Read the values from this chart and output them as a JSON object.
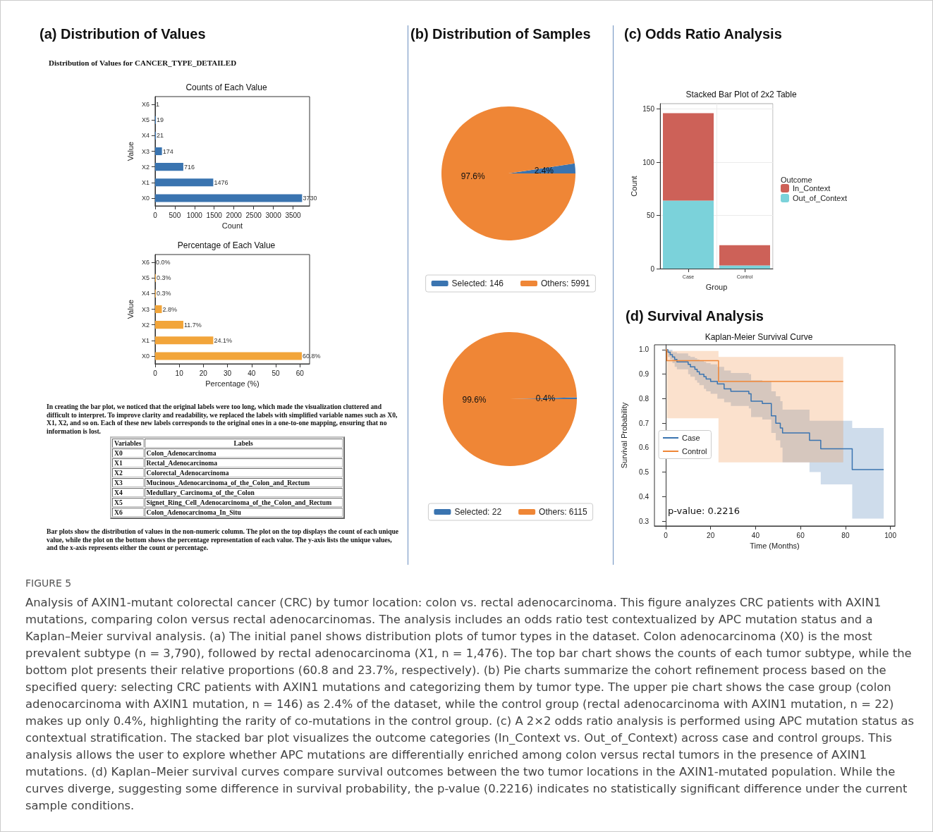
{
  "chart_data": [
    {
      "type": "bar",
      "orientation": "horizontal",
      "title": "Counts of Each Value",
      "xlabel": "Count",
      "ylabel": "Value",
      "categories": [
        "X6",
        "X5",
        "X4",
        "X3",
        "X2",
        "X1",
        "X0"
      ],
      "values": [
        1,
        19,
        21,
        174,
        716,
        1476,
        3730
      ],
      "color": "#3a74b0",
      "data_labels": true,
      "xlim": [
        0,
        3920
      ],
      "xticks": [
        0,
        500,
        1000,
        1500,
        2000,
        2500,
        3000,
        3500
      ],
      "annotations": [
        "(a) Distribution of Values",
        "Distribution of Values for CANCER_TYPE_DETAILED"
      ]
    },
    {
      "type": "bar",
      "orientation": "horizontal",
      "title": "Percentage of Each Value",
      "xlabel": "Percentage (%)",
      "ylabel": "Value",
      "categories": [
        "X6",
        "X5",
        "X4",
        "X3",
        "X2",
        "X1",
        "X0"
      ],
      "values": [
        0.0,
        0.3,
        0.3,
        2.8,
        11.7,
        24.1,
        60.8
      ],
      "value_labels": [
        "0.0%",
        "0.3%",
        "0.3%",
        "2.8%",
        "11.7%",
        "24.1%",
        "60.8%"
      ],
      "color": "#f2a53a",
      "xlim": [
        0,
        64
      ],
      "xticks": [
        0,
        10,
        20,
        30,
        40,
        50,
        60
      ]
    },
    {
      "type": "other",
      "annotations": [
        "In creating the bar plot, we noticed that the original labels were too long, which made the visualization cluttered and difficult to interpret. To improve clarity and readability, we replaced the labels with simplified variable names such as X0, X1, X2, and so on. Each of these new labels corresponds to the original ones in a one-to-one mapping, ensuring that no information is lost.",
        "Variables",
        "Labels",
        "X0",
        "Colon_Adenocarcinoma",
        "X1",
        "Rectal_Adenocarcinoma",
        "X2",
        "Colorectal_Adenocarcinoma",
        "X3",
        "Mucinous_Adenocarcinoma_of_the_Colon_and_Rectum",
        "X4",
        "Medullary_Carcinoma_of_the_Colon",
        "X5",
        "Signet_Ring_Cell_Adenocarcinoma_of_the_Colon_and_Rectum",
        "X6",
        "Colon_Adenocarcinoma_In_Situ",
        "Bar plots show the distribution of values in the non-numeric column. The plot on the top displays the count of each unique value, while the plot on the bottom shows the percentage representation of each value. The y-axis lists the unique values, and the x-axis represents either the count or percentage."
      ]
    },
    {
      "type": "pie",
      "categories": [
        "Selected: 146",
        "Others: 5991"
      ],
      "values": [
        2.4,
        97.6
      ],
      "value_labels": [
        "2.4%",
        "97.6%"
      ],
      "colors": [
        "#3a74b0",
        "#ef8636"
      ],
      "legend": "bottom",
      "annotations": [
        "(b) Distribution of Samples"
      ]
    },
    {
      "type": "pie",
      "categories": [
        "Selected: 22",
        "Others: 6115"
      ],
      "values": [
        0.4,
        99.6
      ],
      "value_labels": [
        "0.4%",
        "99.6%"
      ],
      "colors": [
        "#3a74b0",
        "#ef8636"
      ],
      "legend": "bottom"
    },
    {
      "type": "bar",
      "stacked": true,
      "title": "Stacked Bar Plot of 2x2 Table",
      "xlabel": "Group",
      "ylabel": "Count",
      "legend_title": "Outcome",
      "legend": "right",
      "grid": true,
      "categories": [
        "Case",
        "Control"
      ],
      "ylim": [
        0,
        155
      ],
      "yticks": [
        0,
        50,
        100,
        150
      ],
      "series": [
        {
          "name": "Out_of_Context",
          "color": "#7bd2da",
          "values": [
            64,
            3
          ]
        },
        {
          "name": "In_Context",
          "color": "#cd6158",
          "values": [
            82,
            19
          ]
        }
      ],
      "annotations": [
        "(c) Odds Ratio Analysis"
      ]
    },
    {
      "type": "step",
      "title": "Kaplan-Meier Survival Curve",
      "xlabel": "Time (Months)",
      "ylabel": "Survival Probability",
      "legend": "left",
      "marker": "none",
      "line_style": "solid",
      "xlim": [
        -5,
        102
      ],
      "xticks": [
        0,
        20,
        40,
        60,
        80,
        100
      ],
      "ylim": [
        0.28,
        1.02
      ],
      "yticks": [
        0.3,
        0.4,
        0.5,
        0.6,
        0.7,
        0.8,
        0.9,
        {
          "value": 1.0,
          "label": "1.0"
        }
      ],
      "series": [
        {
          "name": "Case",
          "color": "#3a74b0",
          "x": [
            0,
            1,
            2,
            3,
            4,
            5,
            10,
            11,
            13,
            14,
            15,
            17,
            18,
            20,
            23,
            26,
            29,
            37,
            38,
            43,
            47,
            49,
            51,
            52,
            64,
            69,
            83,
            97
          ],
          "values": [
            1.0,
            0.99,
            0.98,
            0.97,
            0.96,
            0.95,
            0.94,
            0.93,
            0.92,
            0.91,
            0.9,
            0.89,
            0.88,
            0.87,
            0.86,
            0.84,
            0.83,
            0.82,
            0.79,
            0.78,
            0.73,
            0.7,
            0.68,
            0.66,
            0.63,
            0.595,
            0.51,
            0.51
          ],
          "upper": [
            1.0,
            1.0,
            1.0,
            0.99,
            0.99,
            0.985,
            0.975,
            0.97,
            0.965,
            0.96,
            0.955,
            0.95,
            0.945,
            0.94,
            0.93,
            0.915,
            0.905,
            0.9,
            0.875,
            0.87,
            0.83,
            0.81,
            0.79,
            0.755,
            0.71,
            0.71,
            0.68,
            0.68
          ],
          "lower": [
            1.0,
            0.97,
            0.96,
            0.945,
            0.93,
            0.92,
            0.9,
            0.89,
            0.875,
            0.865,
            0.855,
            0.84,
            0.83,
            0.82,
            0.8,
            0.785,
            0.77,
            0.76,
            0.725,
            0.715,
            0.66,
            0.63,
            0.6,
            0.54,
            0.5,
            0.45,
            0.31,
            0.31
          ]
        },
        {
          "name": "Control",
          "color": "#ef8636",
          "x": [
            0,
            0.5,
            23.5,
            79
          ],
          "values": [
            1.0,
            0.955,
            0.87,
            0.87
          ],
          "upper": [
            1.0,
            0.995,
            0.97,
            0.97
          ],
          "lower": [
            1.0,
            0.72,
            0.54,
            0.54
          ]
        }
      ],
      "annotations": [
        "(d) Survival Analysis",
        "p-value: 0.2216"
      ]
    },
    {
      "type": "other",
      "annotations": [
        "FIGURE 5",
        "Analysis of AXIN1-mutant colorectal cancer (CRC) by tumor location: colon vs. rectal adenocarcinoma. This figure analyzes CRC patients with AXIN1 mutations, comparing colon versus rectal adenocarcinomas. The analysis includes an odds ratio test contextualized by APC mutation status and a Kaplan–Meier survival analysis. (a) The initial panel shows distribution plots of tumor types in the dataset. Colon adenocarcinoma (X0) is the most prevalent subtype (n = 3,790), followed by rectal adenocarcinoma (X1, n = 1,476). The top bar chart shows the counts of each tumor subtype, while the bottom plot presents their relative proportions (60.8 and 23.7%, respectively). (b) Pie charts summarize the cohort refinement process based on the specified query: selecting CRC patients with AXIN1 mutations and categorizing them by tumor type. The upper pie chart shows the case group (colon adenocarcinoma with AXIN1 mutation, n = 146) as 2.4% of the dataset, while the control group (rectal adenocarcinoma with AXIN1 mutation, n = 22) makes up only 0.4%, highlighting the rarity of co-mutations in the control group. (c) A 2×2 odds ratio analysis is performed using APC mutation status as contextual stratification. The stacked bar plot visualizes the outcome categories (In_Context vs. Out_of_Context) across case and control groups. This analysis allows the user to explore whether APC mutations are differentially enriched among colon versus rectal tumors in the presence of AXIN1 mutations. (d) Kaplan–Meier survival curves compare survival outcomes between the two tumor locations in the AXIN1-mutated population. While the curves diverge, suggesting some difference in survival probability, the p-value (0.2216) indicates no statistically significant difference under the current sample conditions."
      ]
    }
  ]
}
